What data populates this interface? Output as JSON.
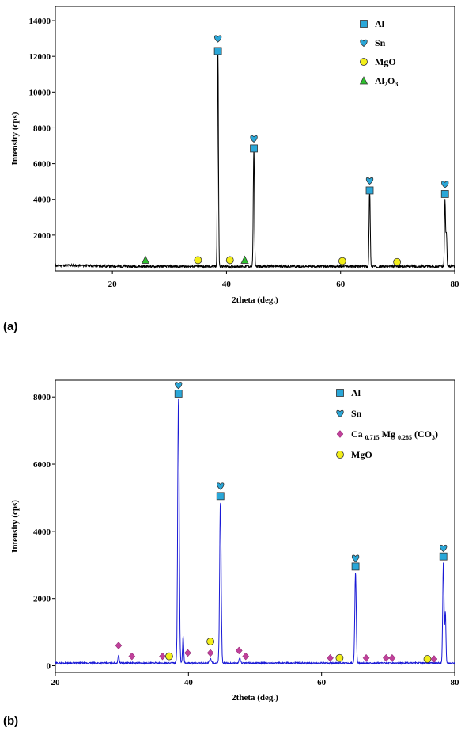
{
  "colors": {
    "line_a": "#000000",
    "line_b": "#1a1ad6",
    "al": "#2aa7d8",
    "sn": "#2aa7d8",
    "mgo": "#f2ee1a",
    "al2o3": "#2ec02e",
    "carbonate": "#c0409a"
  },
  "chart_data": [
    {
      "panel_label": "(a)",
      "type": "line",
      "xlabel": "2theta (deg.)",
      "ylabel": "Intensity (cps)",
      "xlim": [
        10,
        80
      ],
      "ylim": [
        0,
        14800
      ],
      "x_ticks": [
        20,
        40,
        60,
        80
      ],
      "y_ticks": [
        2000,
        4000,
        6000,
        8000,
        10000,
        12000,
        14000
      ],
      "legend": {
        "placement": "top-right",
        "items": [
          {
            "marker": "square",
            "color_key": "al",
            "label": "Al",
            "sub": "",
            "tail": ""
          },
          {
            "marker": "heart",
            "color_key": "sn",
            "label": "Sn",
            "sub": "",
            "tail": ""
          },
          {
            "marker": "circle",
            "color_key": "mgo",
            "label": "MgO",
            "sub": "",
            "tail": ""
          },
          {
            "marker": "triangle",
            "color_key": "al2o3",
            "label": "Al",
            "sub": "2",
            "tail": "O",
            "sub2": "3"
          }
        ]
      },
      "baseline": 250,
      "peaks": [
        {
          "x": 38.5,
          "y": 12200,
          "w": 0.13
        },
        {
          "x": 44.8,
          "y": 6700,
          "w": 0.14
        },
        {
          "x": 65.1,
          "y": 4300,
          "w": 0.14
        },
        {
          "x": 78.3,
          "y": 3700,
          "w": 0.13
        },
        {
          "x": 78.55,
          "y": 1900,
          "w": 0.12
        }
      ],
      "markers": [
        {
          "type": "heart",
          "x": 38.5,
          "y": 13000
        },
        {
          "type": "square",
          "x": 38.5,
          "y": 12300
        },
        {
          "type": "heart",
          "x": 44.8,
          "y": 7400
        },
        {
          "type": "square",
          "x": 44.8,
          "y": 6850
        },
        {
          "type": "heart",
          "x": 65.1,
          "y": 5050
        },
        {
          "type": "square",
          "x": 65.1,
          "y": 4500
        },
        {
          "type": "heart",
          "x": 78.3,
          "y": 4850
        },
        {
          "type": "square",
          "x": 78.3,
          "y": 4300
        },
        {
          "type": "triangle",
          "x": 25.8,
          "y": 600
        },
        {
          "type": "circle",
          "x": 35.0,
          "y": 600
        },
        {
          "type": "circle",
          "x": 40.6,
          "y": 600
        },
        {
          "type": "triangle",
          "x": 43.2,
          "y": 600
        },
        {
          "type": "circle",
          "x": 60.3,
          "y": 550
        },
        {
          "type": "circle",
          "x": 69.9,
          "y": 500
        }
      ]
    },
    {
      "panel_label": "(b)",
      "type": "line",
      "xlabel": "2theta (deg.)",
      "ylabel": "Intensity (cps)",
      "xlim": [
        20,
        80
      ],
      "ylim": [
        -200,
        8500
      ],
      "x_ticks": [
        20,
        40,
        60,
        80
      ],
      "y_ticks": [
        0,
        2000,
        4000,
        6000,
        8000
      ],
      "legend": {
        "placement": "top-right",
        "items": [
          {
            "marker": "square",
            "color_key": "al",
            "label": "Al",
            "sub": "",
            "tail": ""
          },
          {
            "marker": "heart",
            "color_key": "sn",
            "label": "Sn",
            "sub": "",
            "tail": ""
          },
          {
            "marker": "diamond",
            "color_key": "carbonate",
            "label": "Ca ",
            "sub": "0.715",
            "tail": " Mg ",
            "sub2": "0.285",
            "tail2": " (CO",
            "sub3": "3",
            "tail3": ")"
          },
          {
            "marker": "circle",
            "color_key": "mgo",
            "label": "MgO",
            "sub": "",
            "tail": ""
          }
        ]
      },
      "baseline": 80,
      "peaks": [
        {
          "x": 29.5,
          "y": 250,
          "w": 0.12
        },
        {
          "x": 38.5,
          "y": 7900,
          "w": 0.16
        },
        {
          "x": 39.2,
          "y": 800,
          "w": 0.12
        },
        {
          "x": 43.3,
          "y": 120,
          "w": 0.2
        },
        {
          "x": 44.8,
          "y": 4800,
          "w": 0.16
        },
        {
          "x": 47.7,
          "y": 160,
          "w": 0.15
        },
        {
          "x": 65.1,
          "y": 2700,
          "w": 0.15
        },
        {
          "x": 78.3,
          "y": 3000,
          "w": 0.14
        },
        {
          "x": 78.6,
          "y": 1500,
          "w": 0.12
        }
      ],
      "markers": [
        {
          "type": "heart",
          "x": 38.5,
          "y": 8350
        },
        {
          "type": "square",
          "x": 38.5,
          "y": 8100
        },
        {
          "type": "heart",
          "x": 44.8,
          "y": 5350
        },
        {
          "type": "square",
          "x": 44.8,
          "y": 5050
        },
        {
          "type": "heart",
          "x": 65.1,
          "y": 3200
        },
        {
          "type": "square",
          "x": 65.1,
          "y": 2950
        },
        {
          "type": "heart",
          "x": 78.3,
          "y": 3500
        },
        {
          "type": "square",
          "x": 78.3,
          "y": 3250
        },
        {
          "type": "diamond",
          "x": 29.5,
          "y": 600
        },
        {
          "type": "diamond",
          "x": 31.5,
          "y": 280
        },
        {
          "type": "diamond",
          "x": 36.1,
          "y": 280
        },
        {
          "type": "circle",
          "x": 37.1,
          "y": 280
        },
        {
          "type": "diamond",
          "x": 39.9,
          "y": 380
        },
        {
          "type": "circle",
          "x": 43.3,
          "y": 720
        },
        {
          "type": "diamond",
          "x": 43.3,
          "y": 380
        },
        {
          "type": "diamond",
          "x": 47.6,
          "y": 450
        },
        {
          "type": "diamond",
          "x": 48.6,
          "y": 280
        },
        {
          "type": "diamond",
          "x": 61.3,
          "y": 230
        },
        {
          "type": "circle",
          "x": 62.7,
          "y": 230
        },
        {
          "type": "diamond",
          "x": 66.7,
          "y": 230
        },
        {
          "type": "diamond",
          "x": 69.7,
          "y": 230
        },
        {
          "type": "diamond",
          "x": 70.6,
          "y": 230
        },
        {
          "type": "circle",
          "x": 75.9,
          "y": 200
        },
        {
          "type": "diamond",
          "x": 76.9,
          "y": 200
        }
      ]
    }
  ]
}
